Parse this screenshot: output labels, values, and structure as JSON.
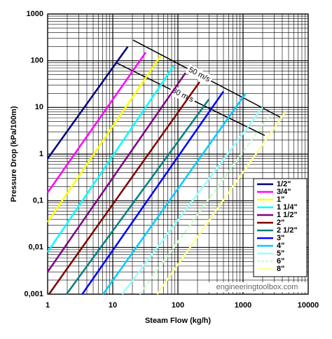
{
  "chart_data": {
    "type": "line",
    "log_x": true,
    "log_y": true,
    "grid": true,
    "xlabel": "Steam Flow (kg/h)",
    "ylabel": "Pressure Drop (kPa/100m)",
    "watermark": "engineeringtoolbox.com",
    "xlim": [
      1,
      10000
    ],
    "xticks": [
      1,
      10,
      100,
      1000,
      10000
    ],
    "ylim": [
      0.001,
      1000
    ],
    "yticks": [
      {
        "value": 0.001,
        "label": "0,001"
      },
      {
        "value": 0.01,
        "label": "0,01"
      },
      {
        "value": 0.1,
        "label": "0,1"
      },
      1,
      10,
      100,
      1000
    ],
    "legend": "lower right",
    "series": [
      {
        "name": "1/2\"",
        "color": "#000080",
        "x": [
          1,
          17
        ],
        "values": [
          0.8,
          200
        ]
      },
      {
        "name": "3/4\"",
        "color": "#ff00ff",
        "x": [
          1,
          32
        ],
        "values": [
          0.15,
          150
        ]
      },
      {
        "name": "1\"",
        "color": "#ffff00",
        "x": [
          1,
          55
        ],
        "values": [
          0.035,
          130
        ]
      },
      {
        "name": "1 1/4\"",
        "color": "#00ffff",
        "x": [
          1,
          86
        ],
        "values": [
          0.008,
          77
        ]
      },
      {
        "name": "1 1/2\"",
        "color": "#800080",
        "x": [
          1,
          131
        ],
        "values": [
          0.003,
          55
        ]
      },
      {
        "name": "2\"",
        "color": "#800000",
        "x": [
          1.05,
          215
        ],
        "values": [
          0.001,
          35
        ]
      },
      {
        "name": "2 1/2\"",
        "color": "#008080",
        "x": [
          1.95,
          300
        ],
        "values": [
          0.001,
          15
        ]
      },
      {
        "name": "3\"",
        "color": "#0000ff",
        "x": [
          3.4,
          500
        ],
        "values": [
          0.001,
          22
        ]
      },
      {
        "name": "4\"",
        "color": "#00ccff",
        "x": [
          7.1,
          1100
        ],
        "values": [
          0.001,
          20
        ]
      },
      {
        "name": "5\"",
        "color": "#99ffff",
        "x": [
          14,
          2000
        ],
        "values": [
          0.001,
          10
        ]
      },
      {
        "name": "6\"",
        "color": "#ccffcc",
        "dashed": true,
        "x": [
          26,
          2600
        ],
        "values": [
          0.001,
          7
        ]
      },
      {
        "name": "8\"",
        "color": "#ffff99",
        "x": [
          48,
          4500
        ],
        "values": [
          0.001,
          8
        ]
      }
    ],
    "annotations": [
      {
        "text": "50 m/s",
        "x": [
          20.5,
          3700
        ],
        "y": [
          277,
          6.2
        ]
      },
      {
        "text": "30 m/s",
        "x": [
          11,
          2150
        ],
        "y": [
          92,
          2.5
        ]
      }
    ]
  }
}
